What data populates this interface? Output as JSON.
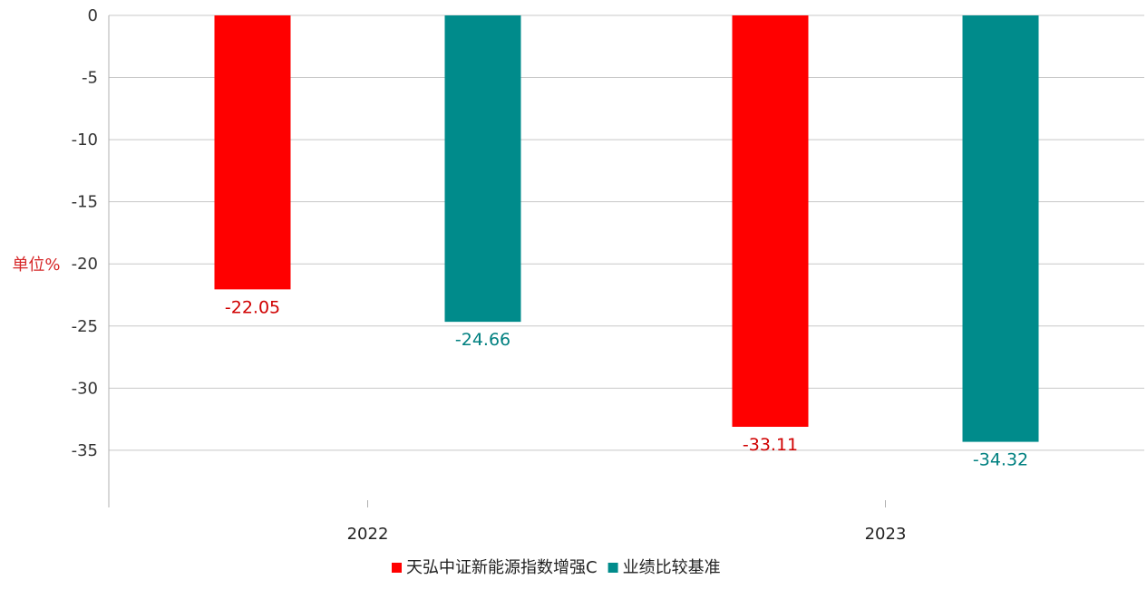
{
  "chart_data": {
    "type": "bar",
    "categories": [
      "2022",
      "2023"
    ],
    "series": [
      {
        "name": "天弘中证新能源指数增强C",
        "values": [
          -22.05,
          -33.11
        ],
        "labels": [
          "-22.05",
          "-33.11"
        ],
        "color": "#ff0000"
      },
      {
        "name": "业绩比较基准",
        "values": [
          -24.66,
          -34.32
        ],
        "labels": [
          "-24.66",
          "-34.32"
        ],
        "color": "#008b8b"
      }
    ],
    "title": "",
    "xlabel": "",
    "ylabel": "单位%",
    "ylim": [
      -39.6,
      0
    ],
    "yticks": [
      0,
      -5,
      -10,
      -15,
      -20,
      -25,
      -30,
      -35
    ],
    "ytick_labels": [
      "0",
      "-5",
      "-10",
      "-15",
      "-20",
      "-25",
      "-30",
      "-35"
    ],
    "grid": true,
    "legend_position": "bottom-center"
  }
}
